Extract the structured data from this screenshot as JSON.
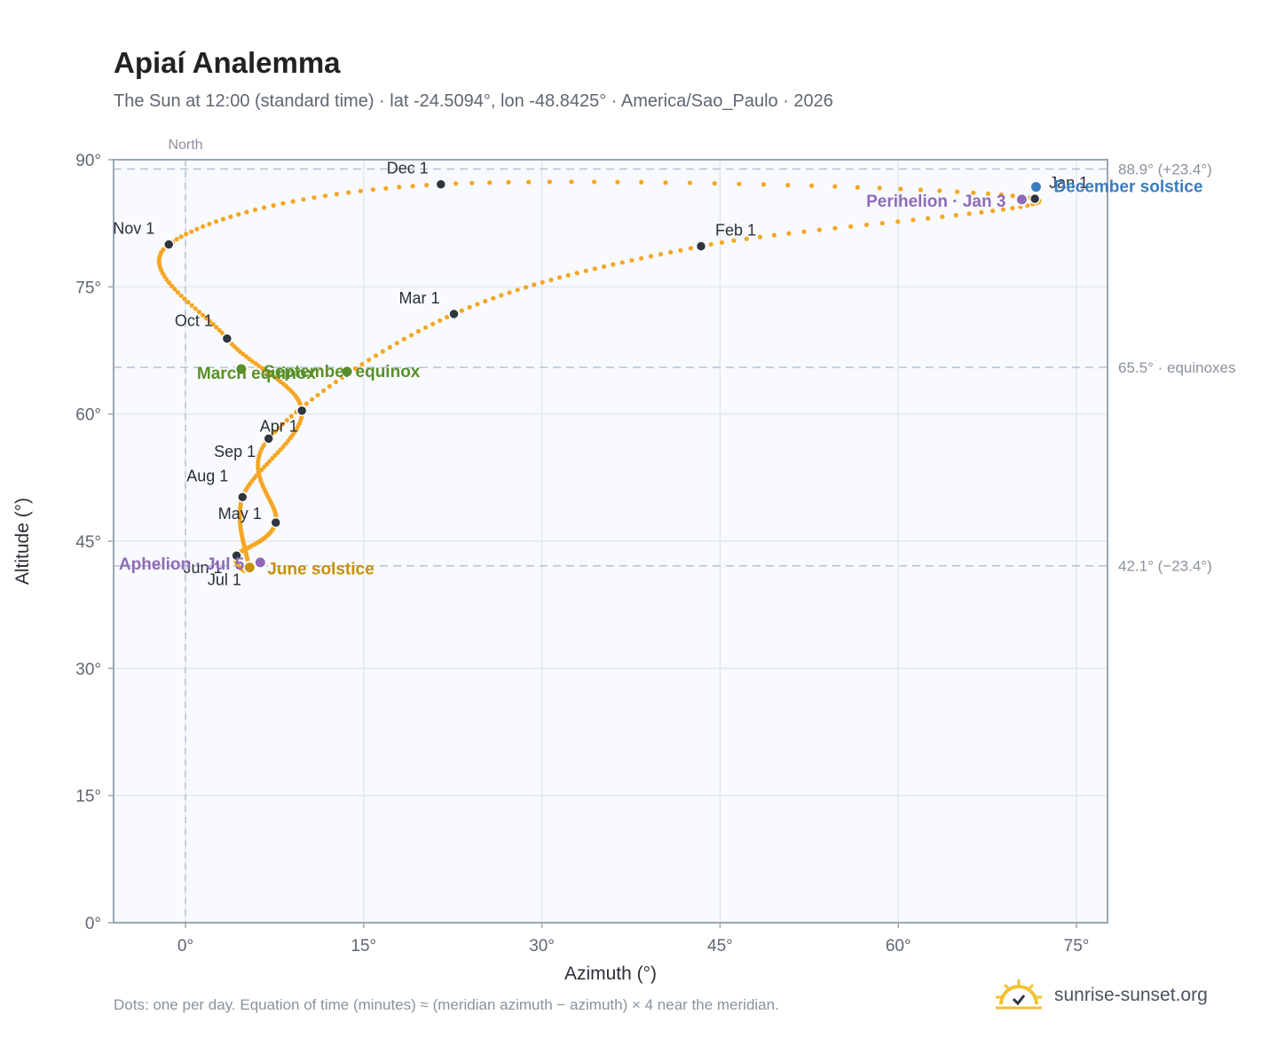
{
  "title": "Apiaí Analemma",
  "subtitle": "The Sun at 12:00 (standard time) · lat -24.5094°, lon -48.8425° · America/Sao_Paulo · 2026",
  "footnote": "Dots: one per day. Equation of time (minutes) ≈ (meridian azimuth − azimuth) × 4 near the meridian.",
  "brand": {
    "name": "sunrise-sunset.org",
    "icon": "sun-logo-icon"
  },
  "colors": {
    "path": "#f5a623",
    "month_marker": "#2f3640",
    "equinox": "#5a8f29",
    "june_solstice": "#c8900a",
    "december_solstice": "#3b7dbf",
    "apsis": "#8e6bb8",
    "plot_bg": "#f8fafd",
    "grid": "#e3e8ef",
    "reference_line": "#b5c2d1"
  },
  "chart_data": {
    "type": "scatter",
    "title": "Apiaí Analemma",
    "xlabel": "Azimuth (°)",
    "ylabel": "Altitude (°)",
    "xlim": [
      -5,
      77
    ],
    "ylim": [
      0,
      90
    ],
    "x_ticks": [
      0,
      15,
      30,
      45,
      60,
      75
    ],
    "x_tick_labels": [
      "0°",
      "15°",
      "30°",
      "45°",
      "60°",
      "75°"
    ],
    "y_ticks": [
      0,
      15,
      30,
      45,
      60,
      75,
      90
    ],
    "y_tick_labels": [
      "0°",
      "15°",
      "30°",
      "45°",
      "60°",
      "75°",
      "90°"
    ],
    "grid": true,
    "meridian": {
      "azimuth": 0,
      "label": "North"
    },
    "reference_lines": [
      {
        "altitude": 88.9,
        "label": "88.9° (+23.4°)"
      },
      {
        "altitude": 65.5,
        "label": "65.5° · equinoxes"
      },
      {
        "altitude": 42.1,
        "label": "42.1° (−23.4°)"
      }
    ],
    "month_markers": [
      {
        "label": "Jan 1",
        "azimuth": 71.5,
        "altitude": 85.4
      },
      {
        "label": "Feb 1",
        "azimuth": 43.4,
        "altitude": 79.8
      },
      {
        "label": "Mar 1",
        "azimuth": 22.6,
        "altitude": 71.8
      },
      {
        "label": "Apr 1",
        "azimuth": 7.0,
        "altitude": 57.1
      },
      {
        "label": "May 1",
        "azimuth": 7.6,
        "altitude": 47.2
      },
      {
        "label": "Jun 1",
        "azimuth": 4.3,
        "altitude": 43.3
      },
      {
        "label": "Jul 1",
        "azimuth": 5.3,
        "altitude": 41.9
      },
      {
        "label": "Aug 1",
        "azimuth": 4.8,
        "altitude": 50.2
      },
      {
        "label": "Sep 1",
        "azimuth": 9.8,
        "altitude": 60.4
      },
      {
        "label": "Oct 1",
        "azimuth": 3.5,
        "altitude": 68.9
      },
      {
        "label": "Nov 1",
        "azimuth": -1.4,
        "altitude": 80.0
      },
      {
        "label": "Dec 1",
        "azimuth": 21.5,
        "altitude": 87.1
      }
    ],
    "events": [
      {
        "label": "December solstice",
        "azimuth": 71.6,
        "altitude": 86.8,
        "color": "#3b7dbf"
      },
      {
        "label": "Perihelion · Jan 3",
        "azimuth": 70.4,
        "altitude": 85.3,
        "color": "#8e6bb8"
      },
      {
        "label": "March equinox",
        "azimuth": 4.7,
        "altitude": 65.3,
        "color": "#5a8f29"
      },
      {
        "label": "September equinox",
        "azimuth": 13.6,
        "altitude": 65.0,
        "color": "#5a8f29"
      },
      {
        "label": "June solstice",
        "azimuth": 5.4,
        "altitude": 41.9,
        "color": "#c8900a"
      },
      {
        "label": "Aphelion · Jul 5",
        "azimuth": 6.3,
        "altitude": 42.5,
        "color": "#8e6bb8"
      }
    ]
  }
}
